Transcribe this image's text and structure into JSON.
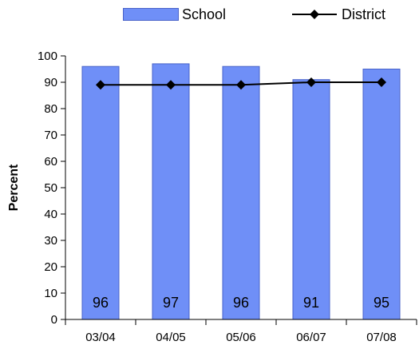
{
  "chart_data": {
    "type": "bar",
    "categories": [
      "03/04",
      "04/05",
      "05/06",
      "06/07",
      "07/08"
    ],
    "series": [
      {
        "name": "School",
        "type": "bar",
        "values": [
          96,
          97,
          96,
          91,
          95
        ]
      },
      {
        "name": "District",
        "type": "line",
        "values": [
          89,
          89,
          89,
          90,
          90
        ]
      }
    ],
    "data_labels": [
      "96",
      "97",
      "96",
      "91",
      "95"
    ],
    "ylabel": "Percent",
    "xlabel": "",
    "ylim": [
      0,
      100
    ],
    "yticks": [
      0,
      10,
      20,
      30,
      40,
      50,
      60,
      70,
      80,
      90,
      100
    ],
    "grid": false,
    "legend_position": "top",
    "colors": {
      "bar_fill": "#6f8ff7",
      "bar_edge": "#4a63c9",
      "line": "#000000",
      "marker": "#000000"
    }
  }
}
